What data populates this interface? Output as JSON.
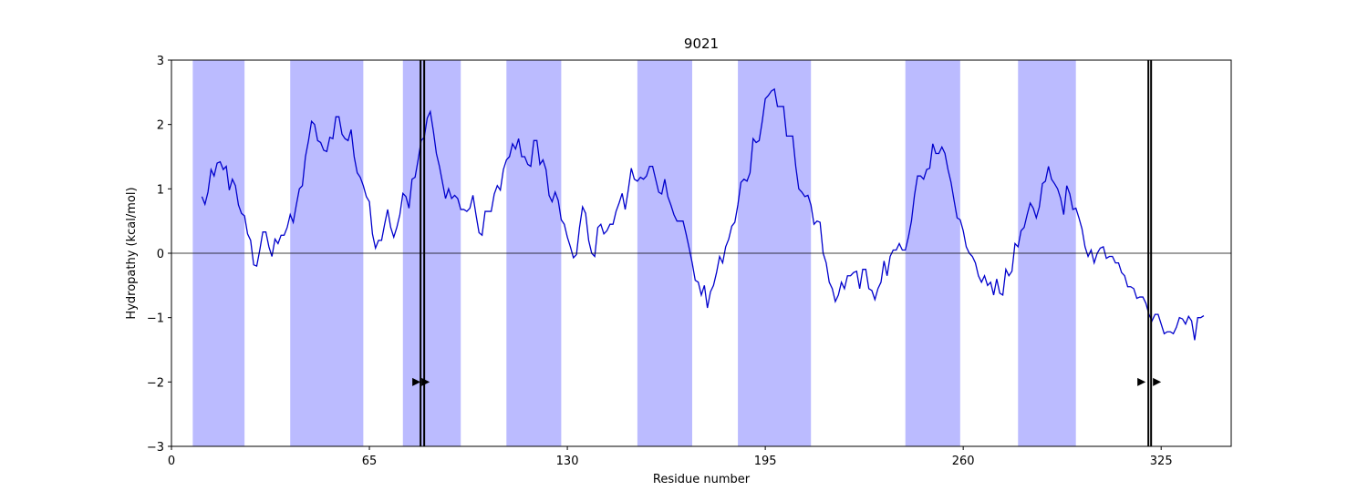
{
  "chart_data": {
    "type": "line",
    "title": "9021",
    "xlabel": "Residue number",
    "ylabel": "Hydropathy (kcal/mol)",
    "x": [
      10,
      11,
      12,
      13,
      14,
      15,
      16,
      17,
      18,
      19,
      20,
      21,
      22,
      23,
      24,
      25,
      26,
      27,
      28,
      29,
      30,
      31,
      32,
      33,
      34,
      35,
      36,
      37,
      38,
      39,
      40,
      41,
      42,
      43,
      44,
      45,
      46,
      47,
      48,
      49,
      50,
      51,
      52,
      53,
      54,
      55,
      56,
      57,
      58,
      59,
      60,
      61,
      62,
      63,
      64,
      65,
      66,
      67,
      68,
      69,
      70,
      71,
      72,
      73,
      74,
      75,
      76,
      77,
      78,
      79,
      80,
      81,
      82,
      83,
      84,
      85,
      86,
      87,
      88,
      89,
      90,
      91,
      92,
      93,
      94,
      95,
      96,
      97,
      98,
      99,
      100,
      101,
      102,
      103,
      104,
      105,
      106,
      107,
      108,
      109,
      110,
      111,
      112,
      113,
      114,
      115,
      116,
      117,
      118,
      119,
      120,
      121,
      122,
      123,
      124,
      125,
      126,
      127,
      128,
      129,
      130,
      131,
      132,
      133,
      134,
      135,
      136,
      137,
      138,
      139,
      140,
      141,
      142,
      143,
      144,
      145,
      146,
      147,
      148,
      149,
      150,
      151,
      152,
      153,
      154,
      155,
      156,
      157,
      158,
      159,
      160,
      161,
      162,
      163,
      164,
      165,
      166,
      167,
      168,
      169,
      170,
      171,
      172,
      173,
      174,
      175,
      176,
      177,
      178,
      179,
      180,
      181,
      182,
      183,
      184,
      185,
      186,
      187,
      188,
      189,
      190,
      191,
      192,
      193,
      194,
      195,
      196,
      197,
      198,
      199,
      200,
      201,
      202,
      203,
      204,
      205,
      206,
      207,
      208,
      209,
      210,
      211,
      212,
      213,
      214,
      215,
      216,
      217,
      218,
      219,
      220,
      221,
      222,
      223,
      224,
      225,
      226,
      227,
      228,
      229,
      230,
      231,
      232,
      233,
      234,
      235,
      236,
      237,
      238,
      239,
      240,
      241,
      242,
      243,
      244,
      245,
      246,
      247,
      248,
      249,
      250,
      251,
      252,
      253,
      254,
      255,
      256,
      257,
      258,
      259,
      260,
      261,
      262,
      263,
      264,
      265,
      266,
      267,
      268,
      269,
      270,
      271,
      272,
      273,
      274,
      275,
      276,
      277,
      278,
      279,
      280,
      281,
      282,
      283,
      284,
      285,
      286,
      287,
      288,
      289,
      290,
      291,
      292,
      293,
      294,
      295,
      296,
      297,
      298,
      299,
      300,
      301,
      302,
      303,
      304,
      305,
      306,
      307,
      308,
      309,
      310,
      311,
      312,
      313,
      314,
      315,
      316,
      317,
      318,
      319,
      320,
      321,
      322,
      323,
      324,
      325,
      326,
      327,
      328,
      329,
      330,
      331,
      332,
      333,
      334,
      335,
      336,
      337,
      338,
      339
    ],
    "series": [
      {
        "color": "#0000cc",
        "values": [
          0.88,
          0.76,
          0.95,
          1.3,
          1.2,
          1.4,
          1.42,
          1.3,
          1.35,
          0.98,
          1.15,
          1.05,
          0.75,
          0.62,
          0.58,
          0.3,
          0.2,
          -0.18,
          -0.2,
          0.05,
          0.33,
          0.33,
          0.1,
          -0.05,
          0.22,
          0.15,
          0.28,
          0.28,
          0.4,
          0.6,
          0.48,
          0.75,
          1.0,
          1.05,
          1.5,
          1.75,
          2.05,
          2.0,
          1.75,
          1.72,
          1.6,
          1.58,
          1.8,
          1.78,
          2.12,
          2.12,
          1.85,
          1.78,
          1.75,
          1.92,
          1.5,
          1.25,
          1.18,
          1.05,
          0.88,
          0.8,
          0.3,
          0.08,
          0.2,
          0.2,
          0.45,
          0.68,
          0.4,
          0.25,
          0.4,
          0.6,
          0.93,
          0.88,
          0.7,
          1.15,
          1.18,
          1.45,
          1.75,
          1.8,
          2.1,
          2.2,
          1.9,
          1.55,
          1.35,
          1.1,
          0.85,
          1.0,
          0.85,
          0.9,
          0.85,
          0.68,
          0.68,
          0.65,
          0.7,
          0.9,
          0.6,
          0.32,
          0.28,
          0.65,
          0.65,
          0.65,
          0.92,
          1.05,
          0.98,
          1.3,
          1.45,
          1.5,
          1.7,
          1.62,
          1.78,
          1.5,
          1.5,
          1.38,
          1.35,
          1.75,
          1.75,
          1.38,
          1.45,
          1.3,
          0.9,
          0.8,
          0.95,
          0.82,
          0.52,
          0.45,
          0.25,
          0.1,
          -0.07,
          -0.02,
          0.4,
          0.72,
          0.62,
          0.2,
          0.0,
          -0.05,
          0.4,
          0.45,
          0.3,
          0.35,
          0.45,
          0.45,
          0.65,
          0.78,
          0.93,
          0.68,
          0.98,
          1.32,
          1.15,
          1.12,
          1.18,
          1.15,
          1.2,
          1.35,
          1.35,
          1.15,
          0.95,
          0.92,
          1.15,
          0.88,
          0.75,
          0.6,
          0.5,
          0.5,
          0.5,
          0.3,
          0.08,
          -0.15,
          -0.42,
          -0.45,
          -0.65,
          -0.5,
          -0.85,
          -0.6,
          -0.5,
          -0.3,
          -0.05,
          -0.15,
          0.1,
          0.22,
          0.42,
          0.48,
          0.75,
          1.1,
          1.15,
          1.12,
          1.25,
          1.78,
          1.72,
          1.75,
          2.05,
          2.4,
          2.45,
          2.52,
          2.55,
          2.28,
          2.28,
          2.28,
          1.82,
          1.82,
          1.82,
          1.35,
          1.0,
          0.95,
          0.88,
          0.9,
          0.75,
          0.45,
          0.5,
          0.48,
          0.0,
          -0.15,
          -0.45,
          -0.55,
          -0.75,
          -0.65,
          -0.45,
          -0.55,
          -0.35,
          -0.35,
          -0.3,
          -0.28,
          -0.55,
          -0.25,
          -0.25,
          -0.55,
          -0.58,
          -0.72,
          -0.55,
          -0.45,
          -0.12,
          -0.35,
          -0.05,
          0.05,
          0.05,
          0.15,
          0.05,
          0.05,
          0.25,
          0.5,
          0.9,
          1.2,
          1.2,
          1.15,
          1.3,
          1.32,
          1.7,
          1.55,
          1.55,
          1.65,
          1.55,
          1.3,
          1.1,
          0.82,
          0.55,
          0.52,
          0.35,
          0.1,
          0.0,
          -0.05,
          -0.15,
          -0.35,
          -0.45,
          -0.35,
          -0.5,
          -0.45,
          -0.65,
          -0.4,
          -0.62,
          -0.65,
          -0.25,
          -0.35,
          -0.28,
          0.15,
          0.1,
          0.35,
          0.4,
          0.6,
          0.78,
          0.7,
          0.55,
          0.72,
          1.08,
          1.12,
          1.35,
          1.15,
          1.08,
          1.0,
          0.85,
          0.6,
          1.05,
          0.92,
          0.68,
          0.7,
          0.55,
          0.38,
          0.1,
          -0.05,
          0.05,
          -0.15,
          0.0,
          0.08,
          0.1,
          -0.08,
          -0.05,
          -0.05,
          -0.15,
          -0.15,
          -0.3,
          -0.35,
          -0.52,
          -0.52,
          -0.55,
          -0.7,
          -0.68,
          -0.68,
          -0.78,
          -0.95,
          -1.05,
          -0.95,
          -0.95,
          -1.1,
          -1.25,
          -1.22,
          -1.22,
          -1.25,
          -1.15,
          -1.0,
          -1.02,
          -1.1,
          -0.98,
          -1.05,
          -1.35,
          -1.0,
          -1.0,
          -0.97
        ]
      }
    ],
    "xlim": [
      0,
      348
    ],
    "ylim": [
      -3,
      3
    ],
    "xticks": [
      0,
      65,
      130,
      195,
      260,
      325
    ],
    "yticks": [
      {
        "value": -3,
        "label": "−3"
      },
      {
        "value": -2,
        "label": "−2"
      },
      {
        "value": -1,
        "label": "−1"
      },
      0,
      1,
      2,
      3
    ],
    "spans": [
      [
        7,
        24
      ],
      [
        39,
        63
      ],
      [
        76,
        95
      ],
      [
        110,
        128
      ],
      [
        153,
        171
      ],
      [
        186,
        210
      ],
      [
        241,
        259
      ],
      [
        278,
        297
      ]
    ],
    "span_color": "#bbbbff",
    "hline": 0,
    "vlines": [
      81.8,
      83,
      320.8,
      321.7
    ],
    "vline_color": "#000000",
    "markers": {
      "x": [
        80.3,
        83.3,
        318.4,
        323.5
      ],
      "y": [
        -2,
        -2,
        -2,
        -2
      ],
      "color": "#000000"
    }
  }
}
